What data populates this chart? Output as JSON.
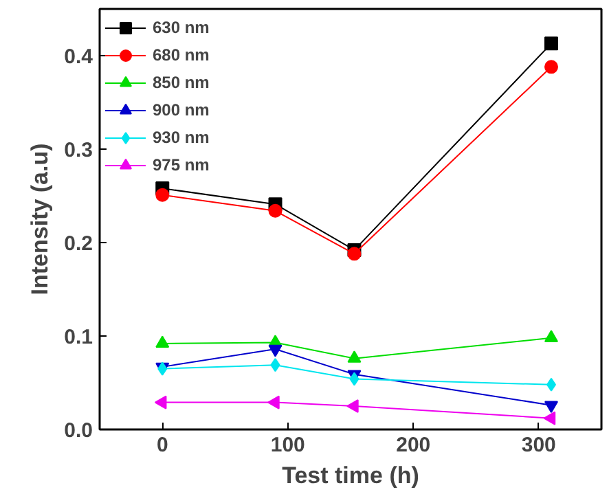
{
  "chart_data": {
    "type": "line",
    "xlabel": "Test time (h)",
    "ylabel": "Intensity (a.u)",
    "x": [
      0,
      90,
      153,
      310
    ],
    "xlim": [
      -50,
      350
    ],
    "xticks": [
      0,
      100,
      200,
      300
    ],
    "ylim": [
      0,
      0.45
    ],
    "yticks": [
      {
        "value": 0,
        "label": "0.0"
      },
      0.1,
      0.2,
      0.3,
      0.4
    ],
    "grid": false,
    "legend": "top left",
    "series": [
      {
        "name": "630 nm",
        "color": "#000000",
        "marker": "square",
        "values": [
          0.258,
          0.241,
          0.192,
          0.413
        ]
      },
      {
        "name": "680 nm",
        "color": "#ff0000",
        "marker": "circle",
        "values": [
          0.251,
          0.234,
          0.188,
          0.388
        ]
      },
      {
        "name": "850 nm",
        "color": "#00dd00",
        "marker": "triangle",
        "values": [
          0.092,
          0.093,
          0.076,
          0.098
        ]
      },
      {
        "name": "900 nm",
        "color": "#0000cc",
        "marker": "triangle",
        "values": [
          0.067,
          0.086,
          0.059,
          0.026
        ]
      },
      {
        "name": "930 nm",
        "color": "#00e5ee",
        "marker": "diamond",
        "values": [
          0.065,
          0.069,
          0.054,
          0.048
        ]
      },
      {
        "name": "975 nm",
        "color": "#ee00ee",
        "marker": "triangle",
        "values": [
          0.029,
          0.029,
          0.025,
          0.012
        ]
      }
    ]
  }
}
